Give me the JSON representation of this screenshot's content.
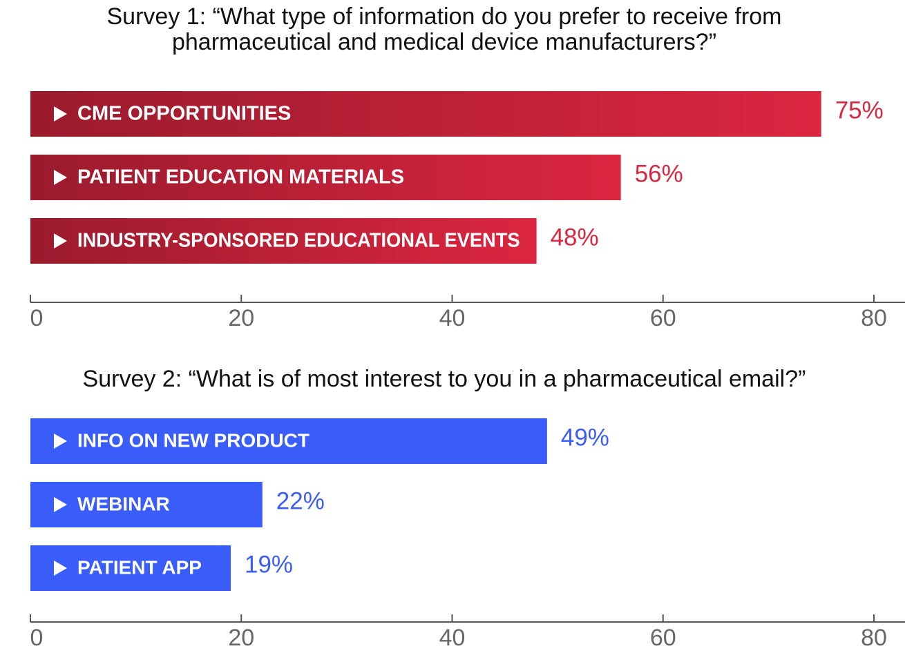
{
  "chart_data": [
    {
      "type": "bar",
      "orientation": "horizontal",
      "title": "Survey 1: “What type of information do you prefer to receive from pharmaceutical and medical device manufacturers?”",
      "categories": [
        "CME OPPORTUNITIES",
        "PATIENT EDUCATION MATERIALS",
        "INDUSTRY-SPONSORED EDUCATIONAL EVENTS"
      ],
      "values": [
        75,
        56,
        48
      ],
      "value_labels": [
        "75%",
        "56%",
        "48%"
      ],
      "color": "#dc2640",
      "gradient": true,
      "xlim": [
        0,
        80
      ],
      "xticks": [
        0,
        20,
        40,
        60,
        80
      ]
    },
    {
      "type": "bar",
      "orientation": "horizontal",
      "title": "Survey 2: “What is of most interest to you in a pharmaceutical email?”",
      "categories": [
        "INFO ON NEW PRODUCT",
        "WEBINAR",
        "PATIENT APP"
      ],
      "values": [
        49,
        22,
        19
      ],
      "value_labels": [
        "49%",
        "22%",
        "19%"
      ],
      "color": "#3a5cf8",
      "gradient": false,
      "xlim": [
        0,
        80
      ],
      "xticks": [
        0,
        20,
        40,
        60,
        80
      ]
    }
  ]
}
